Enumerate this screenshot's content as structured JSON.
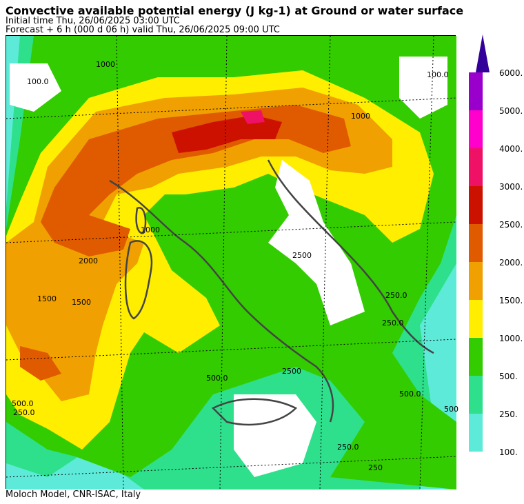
{
  "header": {
    "title": "Convective available potential energy (J kg-1) at Ground or water surface",
    "initial_time": "Initial time  Thu, 26/06/2025  03:00 UTC",
    "forecast": "Forecast  +   6 h  (000 d 06 h)  valid Thu, 26/06/2025 09:00 UTC"
  },
  "footer": {
    "credit": "Moloch Model, CNR-ISAC, Italy"
  },
  "colors": {
    "c100": "#5eead8",
    "c250": "#2ee08c",
    "c500": "#33cc00",
    "c1000": "#ffee00",
    "c1500": "#f0a000",
    "c2000": "#e05a00",
    "c2500": "#cc1100",
    "c3000": "#ee1166",
    "c4000": "#ff00cc",
    "c5000": "#9900cc",
    "c6000": "#330099",
    "coast": "#444444"
  },
  "legend": {
    "labels": [
      "6000.",
      "5000.",
      "4000.",
      "3000.",
      "2500.",
      "2000.",
      "1500.",
      "1000.",
      "500.",
      "250.",
      "100."
    ]
  },
  "map": {
    "contour_labels": [
      {
        "text": "100.0",
        "region": "northwest"
      },
      {
        "text": "1000",
        "region": "north-alps"
      },
      {
        "text": "100.0",
        "region": "northeast"
      },
      {
        "text": "1000",
        "region": "slovenia"
      },
      {
        "text": "1500",
        "region": "west-sea"
      },
      {
        "text": "2000",
        "region": "west-sea"
      },
      {
        "text": "1000",
        "region": "sardinia"
      },
      {
        "text": "1500",
        "region": "tyrrhenian"
      },
      {
        "text": "2500",
        "region": "adriatic"
      },
      {
        "text": "250.0",
        "region": "balkans"
      },
      {
        "text": "500.0",
        "region": "south-italy"
      },
      {
        "text": "2500",
        "region": "ionian"
      },
      {
        "text": "500.0",
        "region": "ionian-east"
      },
      {
        "text": "500.0",
        "region": "southwest"
      },
      {
        "text": "250.0",
        "region": "southwest"
      },
      {
        "text": "250.0",
        "region": "greece"
      },
      {
        "text": "250.0",
        "region": "south-greece"
      },
      {
        "text": "500",
        "region": "east-edge"
      },
      {
        "text": "250",
        "region": "adriatic-south"
      }
    ]
  }
}
